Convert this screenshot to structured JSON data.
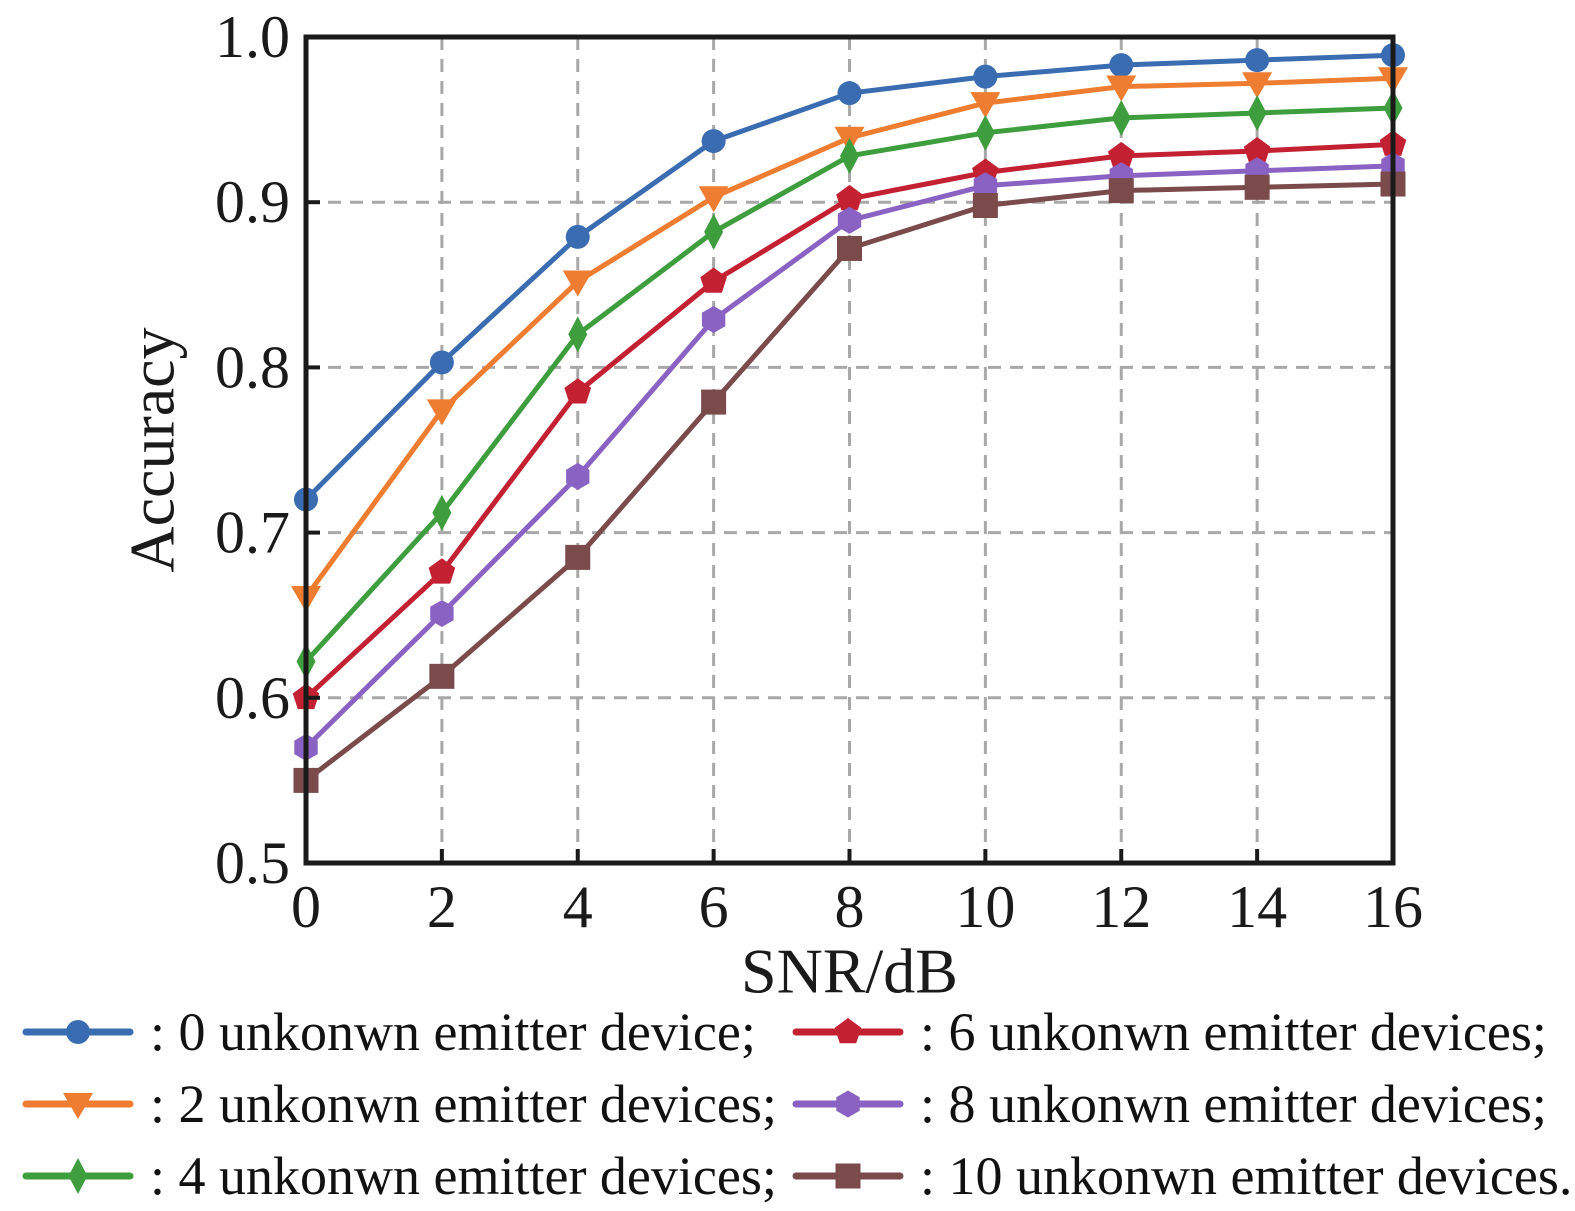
{
  "chart_data": {
    "type": "line",
    "title": "",
    "xlabel": "SNR/dB",
    "ylabel": "Accuracy",
    "x": [
      0,
      2,
      4,
      6,
      8,
      10,
      12,
      14,
      16
    ],
    "xlim": [
      0,
      16
    ],
    "ylim": [
      0.5,
      1.0
    ],
    "xticks": [
      0,
      2,
      4,
      6,
      8,
      10,
      12,
      14,
      16
    ],
    "yticks": [
      0.5,
      0.6,
      0.7,
      0.8,
      0.9,
      1.0
    ],
    "ytick_labels": [
      "0.5",
      "0.6",
      "0.7",
      "0.8",
      "0.9",
      "1.0"
    ],
    "grid": true,
    "grid_color": "#a8a8a8",
    "axis_color": "#1a1a1a",
    "legend_position": "below",
    "series": [
      {
        "label": ": 0 unkonwn emitter device;",
        "marker": "circle",
        "color": "#3A6CB2",
        "values": [
          0.72,
          0.803,
          0.879,
          0.937,
          0.966,
          0.976,
          0.983,
          0.986,
          0.989
        ]
      },
      {
        "label": ": 2 unkonwn emitter devices;",
        "marker": "triangle-down",
        "color": "#EF7D31",
        "values": [
          0.661,
          0.774,
          0.852,
          0.903,
          0.939,
          0.96,
          0.97,
          0.972,
          0.975
        ]
      },
      {
        "label": ": 4 unkonwn emitter devices;",
        "marker": "thin-diamond",
        "color": "#3E9E3E",
        "values": [
          0.622,
          0.712,
          0.82,
          0.882,
          0.928,
          0.942,
          0.951,
          0.954,
          0.957
        ]
      },
      {
        "label": ": 6 unkonwn emitter devices;",
        "marker": "pentagon",
        "color": "#C32132",
        "values": [
          0.6,
          0.676,
          0.785,
          0.852,
          0.902,
          0.918,
          0.928,
          0.931,
          0.935
        ]
      },
      {
        "label": ": 8 unkonwn emitter devices;",
        "marker": "hexagon",
        "color": "#8A62C4",
        "values": [
          0.57,
          0.651,
          0.734,
          0.829,
          0.889,
          0.91,
          0.916,
          0.919,
          0.922
        ]
      },
      {
        "label": ": 10 unkonwn emitter devices.",
        "marker": "square",
        "color": "#7A4B4A",
        "values": [
          0.55,
          0.613,
          0.685,
          0.779,
          0.872,
          0.898,
          0.907,
          0.909,
          0.911
        ]
      }
    ]
  }
}
